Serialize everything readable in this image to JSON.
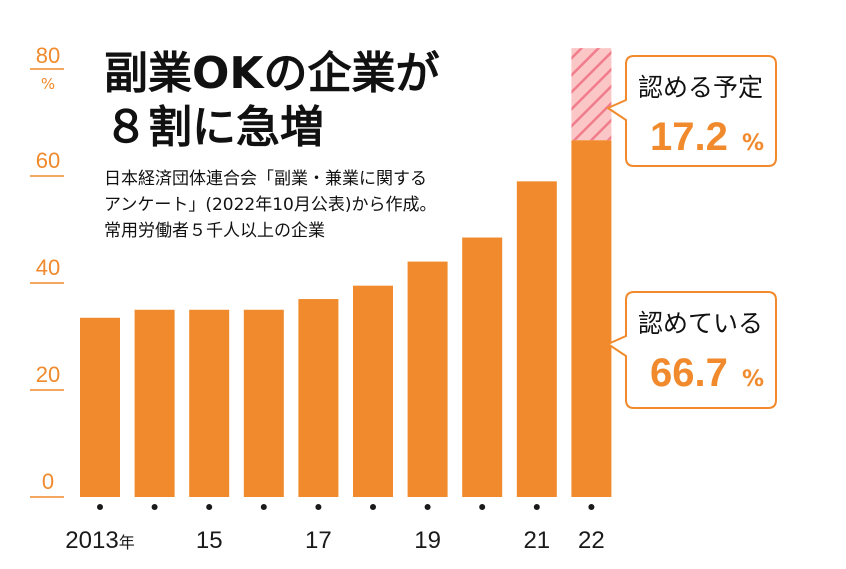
{
  "title": {
    "line1": "副業OKの企業が",
    "line2": "８割に急増"
  },
  "note": [
    "日本経済団体連合会「副業・兼業に関する",
    "アンケート」(2022年10月公表)から作成。",
    "常用労働者５千人以上の企業"
  ],
  "colors": {
    "bar": "#f08a2c",
    "planned_fill": "#fbc6c6",
    "planned_hatch": "#f07c8c",
    "axis": "#f08a2c"
  },
  "chart_data": {
    "type": "bar",
    "ylim": [
      0,
      80
    ],
    "yunit": "%",
    "yticks": [
      0,
      20,
      40,
      60,
      80
    ],
    "categories": [
      "2013",
      "",
      "15",
      "",
      "17",
      "",
      "19",
      "",
      "21",
      "22"
    ],
    "x_first_suffix": "年",
    "series": [
      {
        "name": "認めている",
        "values": [
          33.5,
          35,
          35,
          35,
          37,
          39.5,
          44,
          48.5,
          59,
          66.7
        ]
      },
      {
        "name": "認める予定",
        "values": [
          0,
          0,
          0,
          0,
          0,
          0,
          0,
          0,
          0,
          17.2
        ]
      }
    ],
    "grid": false,
    "annotations": [
      {
        "label": "認める予定",
        "value": "17.2",
        "unit": "%"
      },
      {
        "label": "認めている",
        "value": "66.7",
        "unit": "%"
      }
    ]
  }
}
